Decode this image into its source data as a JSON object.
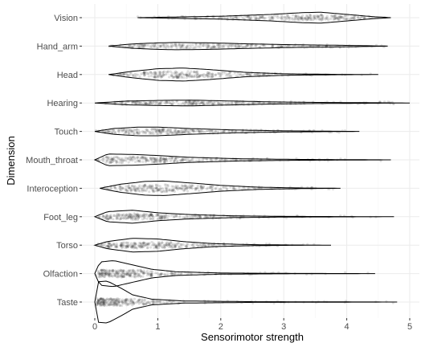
{
  "chart_data": {
    "type": "violin",
    "xlabel": "Sensorimotor strength",
    "ylabel": "Dimension",
    "xlim": [
      -0.15,
      5.1
    ],
    "xticks": [
      0,
      1,
      2,
      3,
      4,
      5
    ],
    "grid": true,
    "legend": "none",
    "categories": [
      "Vision",
      "Hand_arm",
      "Head",
      "Hearing",
      "Touch",
      "Mouth_throat",
      "Interoception",
      "Foot_leg",
      "Torso",
      "Olfaction",
      "Taste"
    ],
    "series": [
      {
        "category": "Vision",
        "min": 0.68,
        "max": 4.7,
        "profile": [
          [
            0.68,
            0.0
          ],
          [
            1.2,
            0.08
          ],
          [
            2.0,
            0.2
          ],
          [
            2.8,
            0.45
          ],
          [
            3.3,
            0.7
          ],
          [
            3.6,
            0.75
          ],
          [
            4.0,
            0.45
          ],
          [
            4.4,
            0.15
          ],
          [
            4.7,
            0.0
          ]
        ]
      },
      {
        "category": "Hand_arm",
        "min": 0.22,
        "max": 4.65,
        "profile": [
          [
            0.22,
            0.0
          ],
          [
            0.6,
            0.3
          ],
          [
            1.0,
            0.45
          ],
          [
            1.3,
            0.5
          ],
          [
            1.8,
            0.45
          ],
          [
            2.5,
            0.3
          ],
          [
            3.2,
            0.18
          ],
          [
            4.0,
            0.1
          ],
          [
            4.65,
            0.0
          ]
        ]
      },
      {
        "category": "Head",
        "min": 0.22,
        "max": 4.5,
        "profile": [
          [
            0.22,
            0.0
          ],
          [
            0.6,
            0.45
          ],
          [
            1.0,
            0.8
          ],
          [
            1.4,
            0.9
          ],
          [
            1.8,
            0.7
          ],
          [
            2.4,
            0.3
          ],
          [
            3.0,
            0.1
          ],
          [
            3.8,
            0.03
          ],
          [
            4.5,
            0.0
          ]
        ]
      },
      {
        "category": "Hearing",
        "min": 0.0,
        "max": 5.0,
        "profile": [
          [
            0.0,
            0.0
          ],
          [
            0.5,
            0.25
          ],
          [
            1.0,
            0.35
          ],
          [
            1.5,
            0.4
          ],
          [
            2.0,
            0.3
          ],
          [
            2.8,
            0.15
          ],
          [
            3.5,
            0.08
          ],
          [
            4.3,
            0.04
          ],
          [
            5.0,
            0.0
          ]
        ]
      },
      {
        "category": "Touch",
        "min": 0.0,
        "max": 4.2,
        "profile": [
          [
            0.0,
            0.0
          ],
          [
            0.3,
            0.4
          ],
          [
            0.7,
            0.6
          ],
          [
            1.0,
            0.6
          ],
          [
            1.5,
            0.4
          ],
          [
            2.2,
            0.2
          ],
          [
            3.0,
            0.08
          ],
          [
            3.7,
            0.03
          ],
          [
            4.2,
            0.0
          ]
        ]
      },
      {
        "category": "Mouth_throat",
        "min": 0.0,
        "max": 4.7,
        "profile": [
          [
            0.0,
            0.0
          ],
          [
            0.2,
            0.8
          ],
          [
            0.6,
            0.75
          ],
          [
            1.0,
            0.6
          ],
          [
            1.5,
            0.35
          ],
          [
            2.3,
            0.15
          ],
          [
            3.2,
            0.06
          ],
          [
            4.0,
            0.03
          ],
          [
            4.7,
            0.0
          ]
        ]
      },
      {
        "category": "Interoception",
        "min": 0.08,
        "max": 3.9,
        "profile": [
          [
            0.08,
            0.0
          ],
          [
            0.4,
            0.55
          ],
          [
            0.8,
            0.95
          ],
          [
            1.1,
            1.0
          ],
          [
            1.5,
            0.75
          ],
          [
            2.0,
            0.4
          ],
          [
            2.6,
            0.15
          ],
          [
            3.3,
            0.04
          ],
          [
            3.9,
            0.0
          ]
        ]
      },
      {
        "category": "Foot_leg",
        "min": 0.0,
        "max": 4.75,
        "profile": [
          [
            0.0,
            0.0
          ],
          [
            0.2,
            0.7
          ],
          [
            0.6,
            0.9
          ],
          [
            1.0,
            0.55
          ],
          [
            1.5,
            0.3
          ],
          [
            2.2,
            0.12
          ],
          [
            3.0,
            0.05
          ],
          [
            4.0,
            0.02
          ],
          [
            4.75,
            0.0
          ]
        ]
      },
      {
        "category": "Torso",
        "min": 0.0,
        "max": 3.75,
        "profile": [
          [
            0.0,
            0.0
          ],
          [
            0.2,
            0.5
          ],
          [
            0.6,
            0.95
          ],
          [
            1.0,
            0.85
          ],
          [
            1.4,
            0.5
          ],
          [
            1.9,
            0.2
          ],
          [
            2.5,
            0.07
          ],
          [
            3.2,
            0.02
          ],
          [
            3.75,
            0.0
          ]
        ]
      },
      {
        "category": "Olfaction",
        "min": 0.0,
        "max": 4.45,
        "profile": [
          [
            0.0,
            0.0
          ],
          [
            0.08,
            1.6
          ],
          [
            0.3,
            1.8
          ],
          [
            0.6,
            1.2
          ],
          [
            0.9,
            0.6
          ],
          [
            1.3,
            0.25
          ],
          [
            2.0,
            0.08
          ],
          [
            3.0,
            0.03
          ],
          [
            4.45,
            0.0
          ]
        ]
      },
      {
        "category": "Taste",
        "min": 0.0,
        "max": 4.8,
        "profile": [
          [
            0.0,
            0.0
          ],
          [
            0.05,
            2.8
          ],
          [
            0.2,
            2.9
          ],
          [
            0.4,
            2.0
          ],
          [
            0.6,
            1.0
          ],
          [
            0.9,
            0.4
          ],
          [
            1.4,
            0.15
          ],
          [
            2.5,
            0.05
          ],
          [
            4.8,
            0.0
          ]
        ]
      }
    ]
  }
}
